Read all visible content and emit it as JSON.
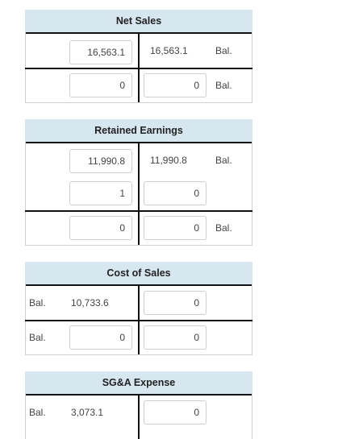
{
  "accounts": [
    {
      "title": "Net Sales",
      "rows": [
        {
          "left_input": "16,563.1",
          "right_text": "16,563.1",
          "right_bal": "Bal."
        },
        {
          "left_input": "0",
          "right_input": "0",
          "right_bal": "Bal."
        }
      ]
    },
    {
      "title": "Retained Earnings",
      "rows": [
        {
          "left_input": "11,990.8",
          "right_text": "11,990.8",
          "right_bal": "Bal."
        },
        {
          "left_input": "1",
          "right_input": "0"
        },
        {
          "left_input": "0",
          "right_input": "0",
          "right_bal": "Bal."
        }
      ]
    },
    {
      "title": "Cost of Sales",
      "rows": [
        {
          "left_bal": "Bal.",
          "left_text": "10,733.6",
          "right_input": "0"
        },
        {
          "left_bal": "Bal.",
          "left_input": "0",
          "right_input": "0"
        }
      ]
    },
    {
      "title": "SG&A Expense",
      "rows": [
        {
          "left_bal": "Bal.",
          "left_text": "3,073.1",
          "right_input": "0"
        }
      ]
    }
  ]
}
